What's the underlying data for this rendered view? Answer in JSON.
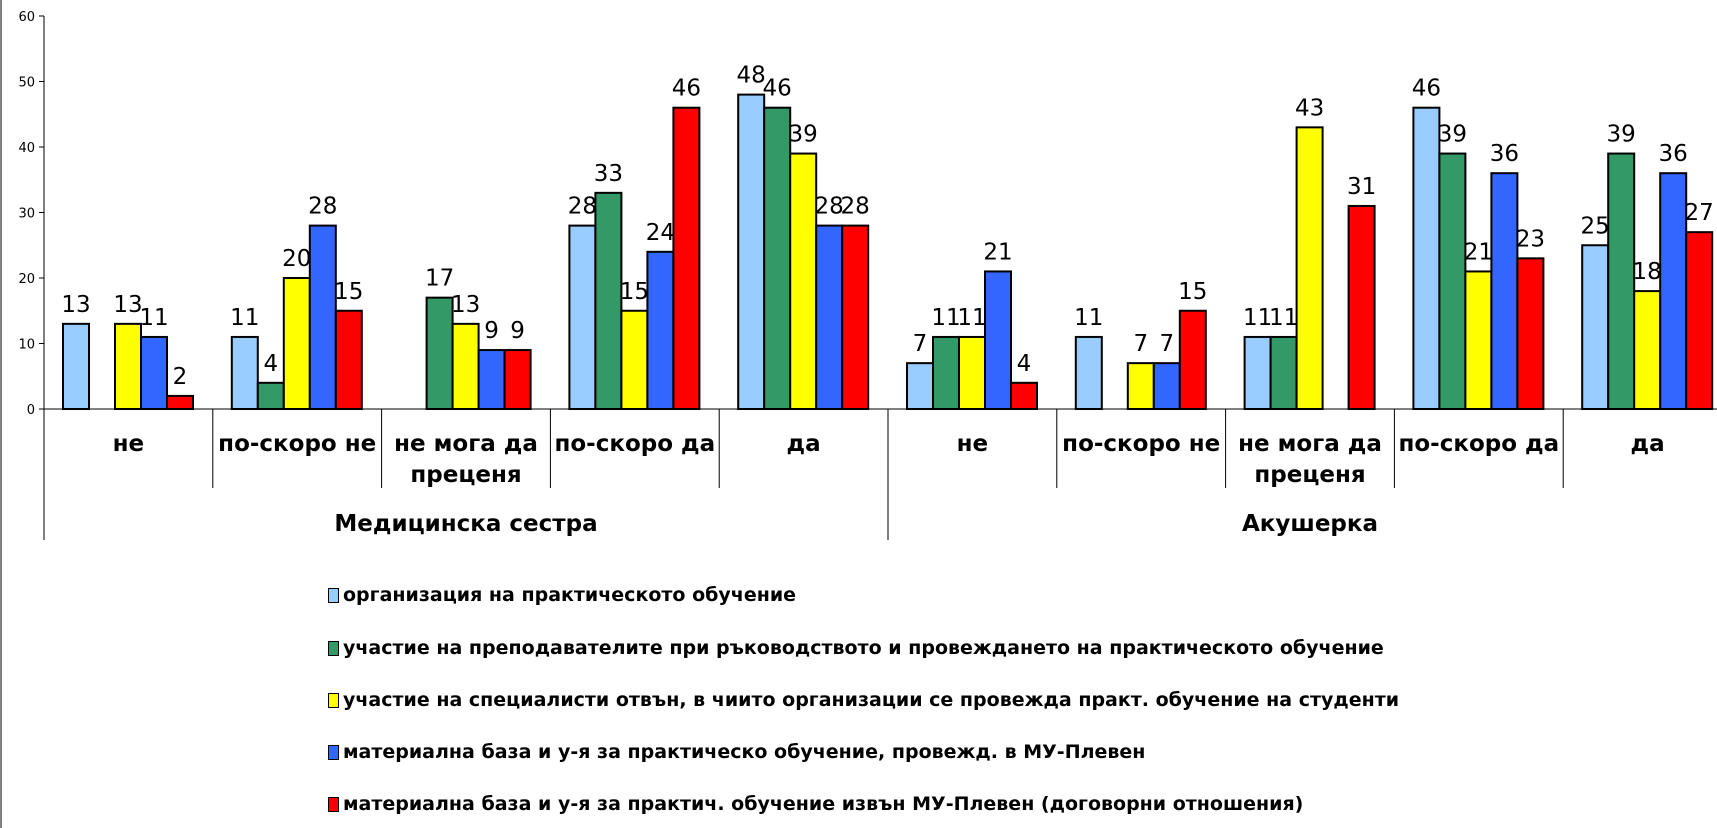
{
  "chart_data": {
    "type": "bar",
    "ylim": [
      0,
      60
    ],
    "y_ticks": [
      0,
      10,
      20,
      30,
      40,
      50,
      60
    ],
    "groups": [
      {
        "label": "Медицинска сестра",
        "categories": [
          "не",
          "по-скоро не",
          "не мога да преценя",
          "по-скоро да",
          "да"
        ]
      },
      {
        "label": "Акушерка",
        "categories": [
          "не",
          "по-скоро не",
          "не мога да преценя",
          "по-скоро да",
          "да"
        ]
      }
    ],
    "series": [
      {
        "name": "организация на практическото обучение",
        "color": "#99ccff",
        "values": [
          13,
          11,
          0,
          28,
          48,
          7,
          11,
          11,
          46,
          25
        ]
      },
      {
        "name": "участие на  преподавателите при ръководството и провеждането на практическото обучение",
        "color": "#339966",
        "values": [
          0,
          4,
          17,
          33,
          46,
          11,
          0,
          11,
          39,
          39
        ]
      },
      {
        "name": "участие на специалисти отвън, в чиито организации се провежда практ. обучение на студенти",
        "color": "#ffff00",
        "values": [
          13,
          20,
          13,
          15,
          39,
          11,
          7,
          43,
          21,
          18
        ]
      },
      {
        "name": "материална база и у-я за практическо обучение, провежд. в МУ-Плевен",
        "color": "#3366ff",
        "values": [
          11,
          28,
          9,
          24,
          28,
          21,
          7,
          0,
          36,
          36
        ]
      },
      {
        "name": "материална база и у-я за практич. обучение извън МУ-Плевен (договорни отношения)",
        "color": "#ff0000",
        "values": [
          2,
          15,
          9,
          46,
          28,
          4,
          15,
          31,
          23,
          27
        ]
      }
    ],
    "grid": false,
    "legend_position": "bottom"
  }
}
